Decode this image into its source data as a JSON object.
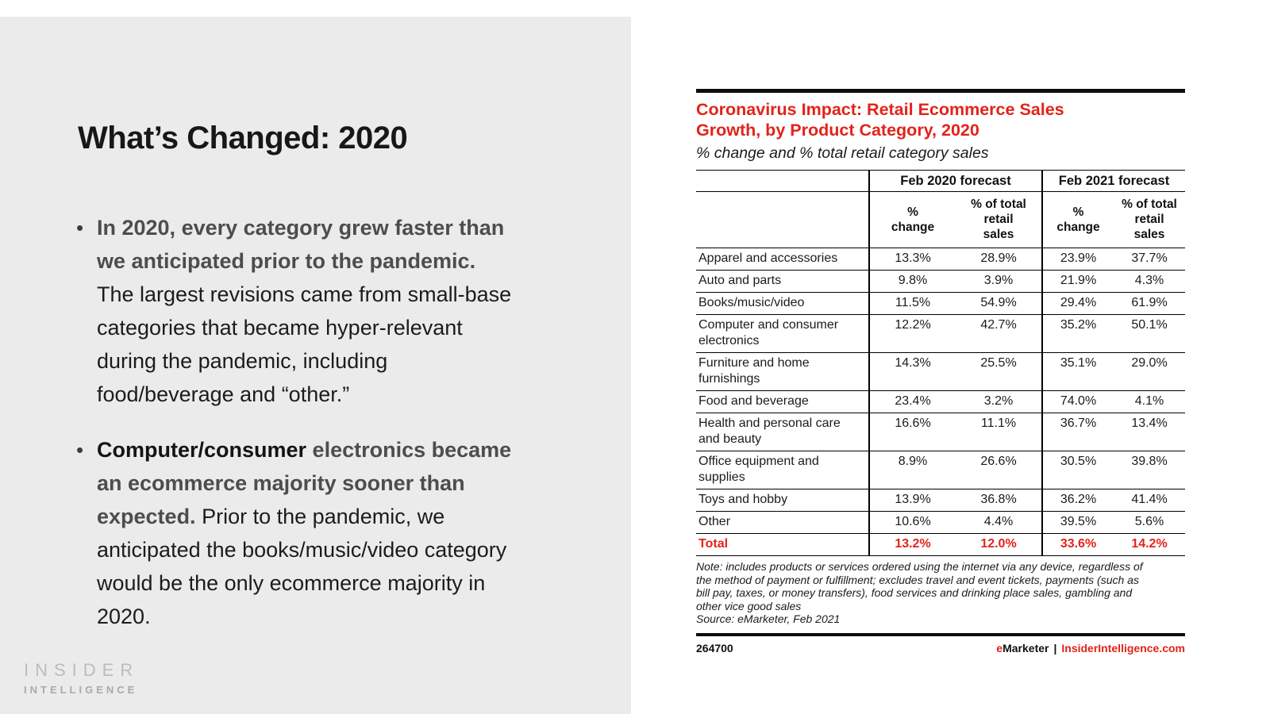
{
  "slide": {
    "title": "What’s Changed: 2020",
    "bullets": [
      {
        "marker": "•",
        "lines": [
          [
            {
              "s": "bold-gray",
              "t": "In 2020, every category grew faster than"
            }
          ],
          [
            {
              "s": "bold-gray",
              "t": "we anticipated prior to the pandemic."
            }
          ],
          [
            {
              "s": "regular",
              "t": "The largest revisions came from small-base"
            }
          ],
          [
            {
              "s": "regular",
              "t": "categories that became hyper-relevant"
            }
          ],
          [
            {
              "s": "regular",
              "t": "during the pandemic, including"
            }
          ],
          [
            {
              "s": "regular",
              "t": "food/beverage and “other.”"
            }
          ]
        ]
      },
      {
        "marker": "•",
        "lines": [
          [
            {
              "s": "bold-black",
              "t": "Computer/consumer"
            },
            {
              "s": "bold-gray",
              "t": " electronics became"
            }
          ],
          [
            {
              "s": "bold-gray",
              "t": "an ecommerce majority sooner than"
            }
          ],
          [
            {
              "s": "bold-gray",
              "t": "expected."
            },
            {
              "s": "regular",
              "t": " Prior to the pandemic, we"
            }
          ],
          [
            {
              "s": "regular",
              "t": "anticipated the books/music/video category"
            }
          ],
          [
            {
              "s": "regular",
              "t": "would be the only ecommerce majority in"
            }
          ],
          [
            {
              "s": "regular",
              "t": "2020."
            }
          ]
        ]
      }
    ],
    "logo": {
      "line1": "INSIDER",
      "line2": "INTELLIGENCE"
    }
  },
  "chart": {
    "title_lines": [
      "Coronavirus Impact: Retail Ecommerce Sales",
      "Growth, by Product Category, 2020"
    ],
    "subtitle": "% change and % total retail category sales",
    "subheader_lines": [
      [
        "%",
        "change"
      ],
      [
        "% of total",
        "retail",
        "sales"
      ],
      [
        "%",
        "change"
      ],
      [
        "% of total",
        "retail",
        "sales"
      ]
    ],
    "note_lines": [
      "Note: includes products or services ordered using the internet via any device, regardless of",
      "the method of payment or fulfillment; excludes travel and event tickets, payments (such as",
      "bill pay, taxes, or money transfers), food services and drinking place sales, gambling and",
      "other vice good sales",
      "Source: eMarketer, Feb 2021"
    ],
    "footer": {
      "id": "264700",
      "brand_e": "e",
      "brand_rest": "Marketer",
      "separator": "|",
      "site": "InsiderIntelligence.com"
    }
  },
  "chart_data": {
    "type": "table",
    "title": "Coronavirus Impact: Retail Ecommerce Sales Growth, by Product Category, 2020",
    "subtitle": "% change and % total retail category sales",
    "column_groups": [
      "Feb 2020 forecast",
      "Feb 2021 forecast"
    ],
    "columns": [
      "% change",
      "% of total retail sales",
      "% change",
      "% of total retail sales"
    ],
    "rows": [
      {
        "category": "Apparel and accessories",
        "values": [
          "13.3%",
          "28.9%",
          "23.9%",
          "37.7%"
        ]
      },
      {
        "category": "Auto and parts",
        "values": [
          "9.8%",
          "3.9%",
          "21.9%",
          "4.3%"
        ]
      },
      {
        "category": "Books/music/video",
        "values": [
          "11.5%",
          "54.9%",
          "29.4%",
          "61.9%"
        ]
      },
      {
        "category": "Computer and consumer electronics",
        "values": [
          "12.2%",
          "42.7%",
          "35.2%",
          "50.1%"
        ]
      },
      {
        "category": "Furniture and home furnishings",
        "values": [
          "14.3%",
          "25.5%",
          "35.1%",
          "29.0%"
        ]
      },
      {
        "category": "Food and beverage",
        "values": [
          "23.4%",
          "3.2%",
          "74.0%",
          "4.1%"
        ]
      },
      {
        "category": "Health and personal care and beauty",
        "values": [
          "16.6%",
          "11.1%",
          "36.7%",
          "13.4%"
        ]
      },
      {
        "category": "Office equipment and supplies",
        "values": [
          "8.9%",
          "26.6%",
          "30.5%",
          "39.8%"
        ]
      },
      {
        "category": "Toys and hobby",
        "values": [
          "13.9%",
          "36.8%",
          "36.2%",
          "41.4%"
        ]
      },
      {
        "category": "Other",
        "values": [
          "10.6%",
          "4.4%",
          "39.5%",
          "5.6%"
        ]
      },
      {
        "category": "Total",
        "values": [
          "13.2%",
          "12.0%",
          "33.6%",
          "14.2%"
        ],
        "is_total": true
      }
    ],
    "note": "Note: includes products or services ordered using the internet via any device, regardless of the method of payment or fulfillment; excludes travel and event tickets, payments (such as bill pay, taxes, or money transfers), food services and drinking place sales, gambling and other vice good sales",
    "source": "Source: eMarketer, Feb 2021",
    "chart_id": "264700"
  },
  "colors": {
    "accent_red": "#e2231a",
    "panel_gray": "#ebebeb",
    "text_dark": "#1c1c1c",
    "text_bold_gray": "#4d4d4f",
    "logo_gray": "#bcbcbc",
    "rule_black": "#0d0d0d"
  }
}
